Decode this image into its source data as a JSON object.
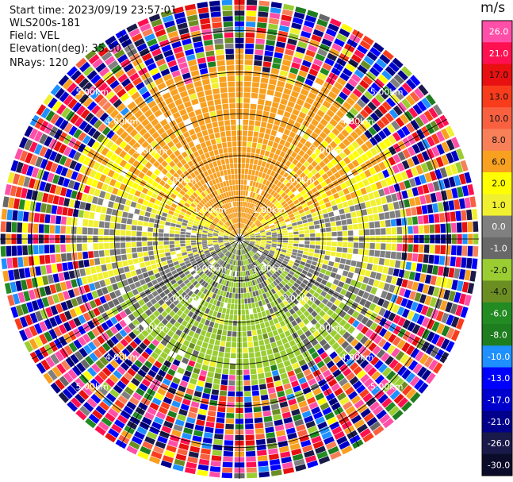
{
  "info": {
    "start_time": "Start time: 2023/09/19 23:57:01",
    "site": "WLS200s-181",
    "field": "Field: VEL",
    "elevation": "Elevation(deg): 35.30",
    "nrays": "NRays: 120"
  },
  "colorbar": {
    "unit": "m/s",
    "ticks": [
      "26.0",
      "21.0",
      "17.0",
      "13.0",
      "10.0",
      "8.0",
      "6.0",
      "2.0",
      "1.0",
      "0.0",
      "-1.0",
      "-2.0",
      "-4.0",
      "-6.0",
      "-8.0",
      "-10.0",
      "-13.0",
      "-17.0",
      "-21.0",
      "-26.0",
      "-30.0"
    ],
    "bands": [
      "#ff4fa8",
      "#ff1050",
      "#e81010",
      "#f83c1c",
      "#f86040",
      "#f88058",
      "#f8a020",
      "#ffff00",
      "#f0f030",
      "#808080",
      "#686868",
      "#9acd32",
      "#6b8e23",
      "#228b22",
      "#1e7d1e",
      "#1e90ff",
      "#0000ff",
      "#0000cd",
      "#00008b",
      "#1a1a4a",
      "#0b0b2a"
    ]
  },
  "chart_data": {
    "type": "heatmap",
    "title": "",
    "projection": "polar (PPI)",
    "field": "VEL",
    "units": "m/s",
    "n_rays": 120,
    "range_rings_km": [
      1.0,
      2.0,
      3.0,
      4.0,
      5.0
    ],
    "ring_labels": [
      "1.00km",
      "2.00km",
      "3.00km",
      "4.00km",
      "5.00km"
    ],
    "value_range": [
      -30,
      26
    ],
    "pattern": {
      "north_sector_m_s": 4,
      "south_sector_m_s": -3,
      "near_zero_east_west": true,
      "outer_ranges": "noisy / random values"
    }
  }
}
